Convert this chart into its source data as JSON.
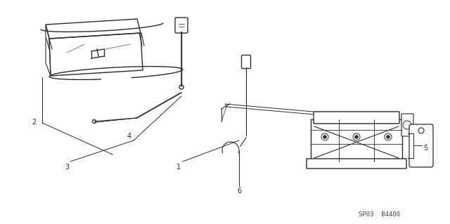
{
  "background_color": "#ffffff",
  "line_color": "#2a2a2a",
  "label_color": "#2a2a2a",
  "diagram_code": "SP03  B4400",
  "figsize": [
    6.4,
    3.19
  ],
  "dpi": 100,
  "items": {
    "2": {
      "label": "2"
    },
    "3": {
      "label": "3"
    },
    "4": {
      "label": "4"
    },
    "1": {
      "label": "1"
    },
    "6": {
      "label": "6"
    },
    "5": {
      "label": "5"
    }
  }
}
